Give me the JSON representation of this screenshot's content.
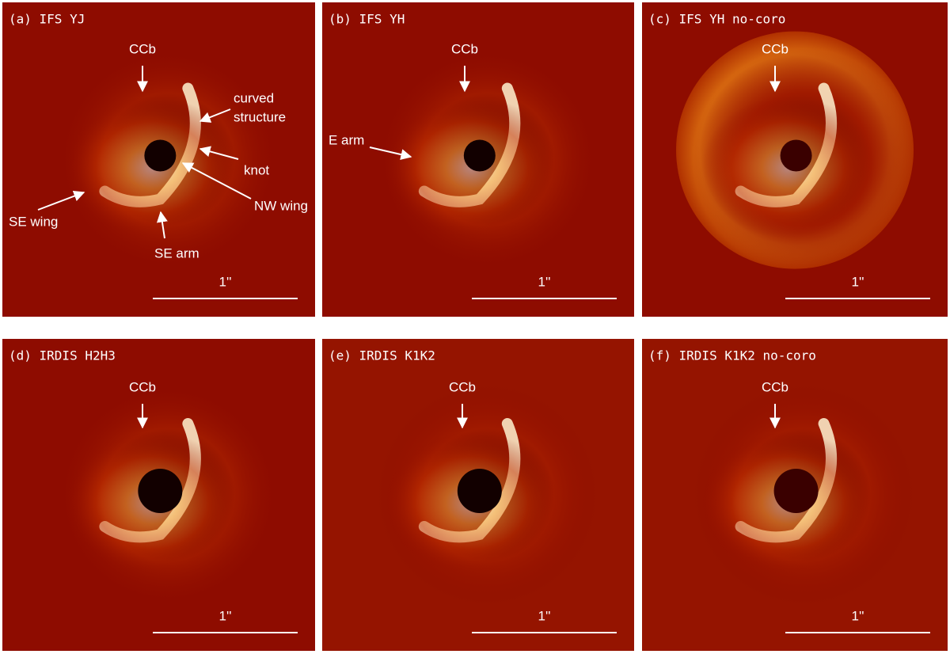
{
  "panels": [
    {
      "title": "(a) IFS YJ",
      "annotations": [
        [
          "CCb"
        ],
        [
          "curved",
          "structure"
        ],
        [
          "knot"
        ],
        [
          "NW wing"
        ],
        [
          "SE wing"
        ],
        [
          "SE arm"
        ]
      ],
      "scale_bar": "1''"
    },
    {
      "title": "(b) IFS YH",
      "annotations": [
        [
          "CCb"
        ],
        [
          "E arm"
        ]
      ],
      "scale_bar": "1''"
    },
    {
      "title": "(c) IFS YH no-coro",
      "annotations": [
        [
          "CCb"
        ]
      ],
      "scale_bar": "1''"
    },
    {
      "title": "(d) IRDIS H2H3",
      "annotations": [
        [
          "CCb"
        ]
      ],
      "scale_bar": "1''"
    },
    {
      "title": "(e) IRDIS K1K2",
      "annotations": [
        [
          "CCb"
        ]
      ],
      "scale_bar": "1''"
    },
    {
      "title": "(f) IRDIS K1K2 no-coro",
      "annotations": [
        [
          "CCb"
        ]
      ],
      "scale_bar": "1''"
    }
  ]
}
